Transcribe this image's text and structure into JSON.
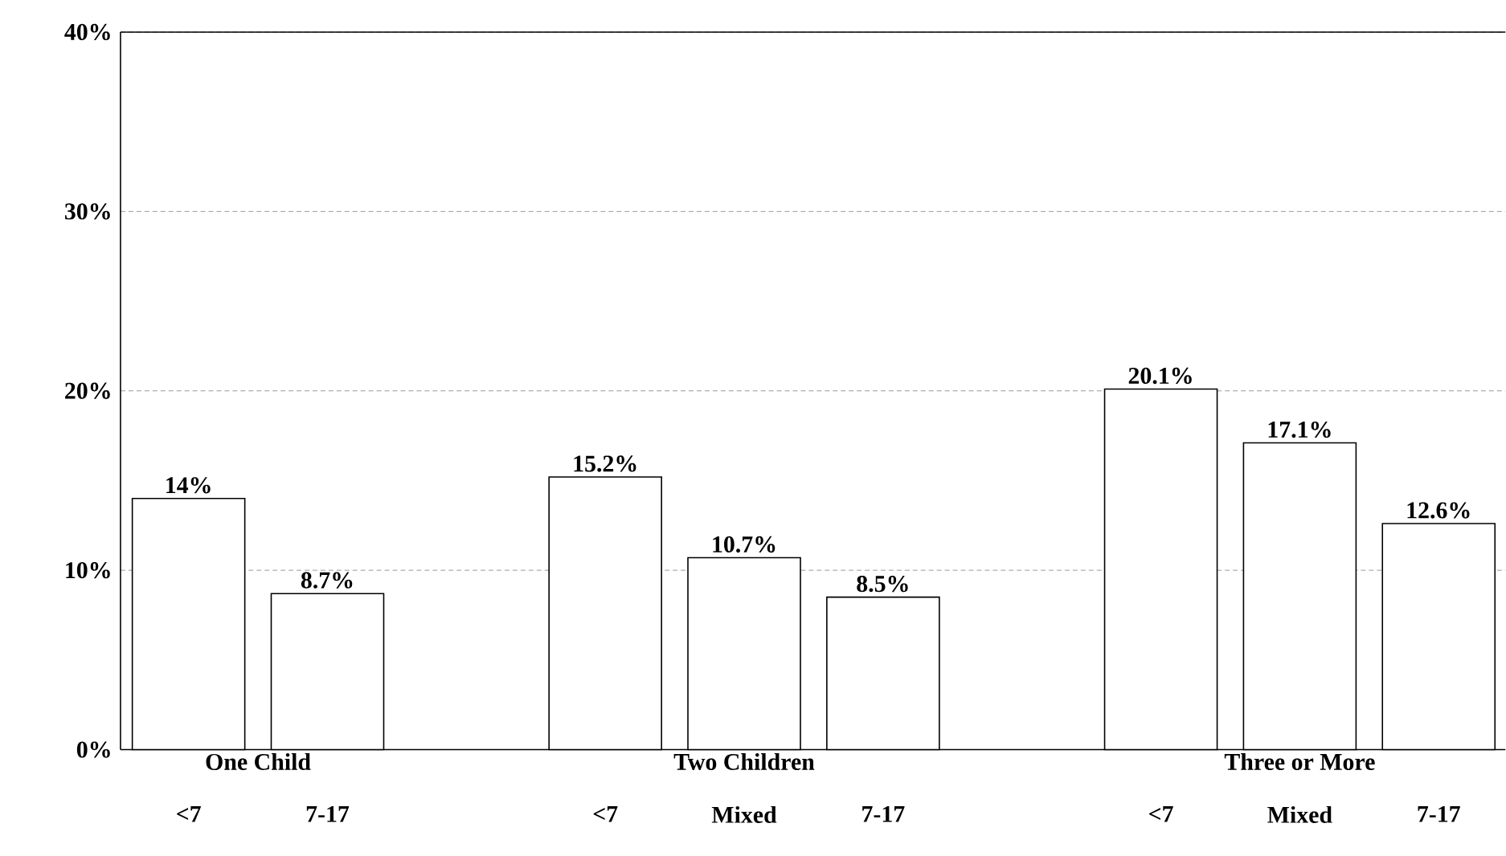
{
  "chart_data": {
    "type": "bar",
    "categories": [
      "<7",
      "7-17",
      null,
      "<7",
      "Mixed",
      "7-17",
      null,
      "<7",
      "Mixed",
      "7-17"
    ],
    "values": [
      14,
      8.7,
      null,
      15.2,
      10.7,
      8.5,
      null,
      20.1,
      17.1,
      12.6
    ],
    "value_labels": [
      "14%",
      "8.7%",
      null,
      "15.2%",
      "10.7%",
      "8.5%",
      null,
      "20.1%",
      "17.1%",
      "12.6%"
    ],
    "color": "#ffffff",
    "annotations": [
      "One Child",
      "Two Children",
      "Three or More"
    ],
    "ylim": [
      0,
      40
    ],
    "yticks": [
      {
        "value": 0,
        "label": "0%"
      },
      {
        "value": 10,
        "label": "10%"
      },
      {
        "value": 20,
        "label": "20%"
      },
      {
        "value": 30,
        "label": "30%"
      },
      {
        "value": 40,
        "label": "40%"
      }
    ],
    "grid": "y"
  }
}
